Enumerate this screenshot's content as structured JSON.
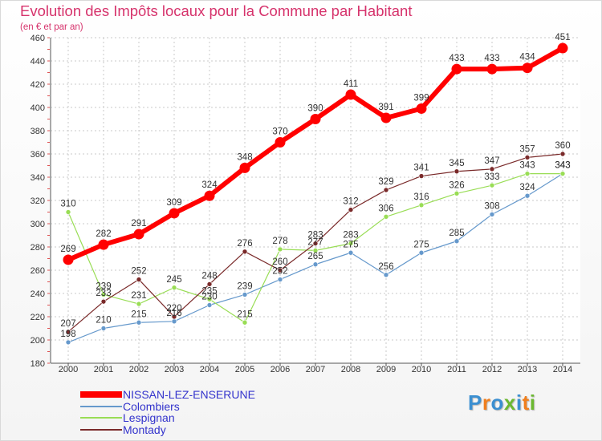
{
  "title": "Evolution des Impôts locaux pour la Commune par Habitant",
  "subtitle": "(en € et par an)",
  "logo": {
    "text": "Proxiti",
    "letters": [
      "P",
      "r",
      "o",
      "x",
      "i",
      "t",
      "i"
    ],
    "colors": [
      "#3b8fd1",
      "#f07f1e",
      "#3b8fd1",
      "#6bb830",
      "#3b8fd1",
      "#f07f1e",
      "#6bb830"
    ]
  },
  "chart_data": {
    "type": "line",
    "title": "Evolution des Impôts locaux pour la Commune par Habitant",
    "xlabel": "",
    "ylabel": "(en € et par an)",
    "x": [
      "2000",
      "2001",
      "2002",
      "2003",
      "2004",
      "2005",
      "2006",
      "2007",
      "2008",
      "2009",
      "2010",
      "2011",
      "2012",
      "2013",
      "2014"
    ],
    "yticks": [
      180,
      200,
      220,
      240,
      260,
      280,
      300,
      320,
      340,
      360,
      380,
      400,
      420,
      440,
      460
    ],
    "ylim": [
      180,
      460
    ],
    "grid": true,
    "legend_position": "bottom-left",
    "series": [
      {
        "name": "NISSAN-LEZ-ENSERUNE",
        "color": "#ff0000",
        "emphasis": true,
        "values": [
          269,
          282,
          291,
          309,
          324,
          348,
          370,
          390,
          411,
          391,
          399,
          433,
          433,
          434,
          451
        ],
        "labels": [
          "269",
          "282",
          "291",
          "309",
          "324",
          "348",
          "370",
          "390",
          "411",
          "391",
          "399",
          "433",
          "433",
          "434",
          "451"
        ]
      },
      {
        "name": "Colombiers",
        "color": "#6699cc",
        "emphasis": false,
        "values": [
          198,
          210,
          215,
          216,
          230,
          239,
          252,
          265,
          275,
          256,
          275,
          285,
          308,
          324,
          343
        ],
        "labels": [
          "198",
          "210",
          "215",
          "216",
          "230",
          "239",
          "252",
          "265",
          "275",
          "256",
          "275",
          "285",
          "308",
          "324",
          "343"
        ]
      },
      {
        "name": "Lespignan",
        "color": "#99dd55",
        "emphasis": false,
        "values": [
          310,
          239,
          231,
          245,
          235,
          215,
          278,
          277,
          283,
          306,
          316,
          326,
          333,
          343,
          343
        ],
        "labels": [
          "310",
          "239",
          "231",
          "245",
          "235",
          "215",
          "278",
          "277",
          "283",
          "306",
          "316",
          "326",
          "333",
          "343",
          "343"
        ]
      },
      {
        "name": "Montady",
        "color": "#7a2a2a",
        "emphasis": false,
        "values": [
          207,
          233,
          252,
          220,
          248,
          276,
          260,
          283,
          312,
          329,
          341,
          345,
          347,
          357,
          360
        ],
        "labels": [
          "207",
          "233",
          "252",
          "220",
          "248",
          "276",
          "260",
          "283",
          "312",
          "329",
          "341",
          "345",
          "347",
          "357",
          "360"
        ]
      }
    ]
  }
}
